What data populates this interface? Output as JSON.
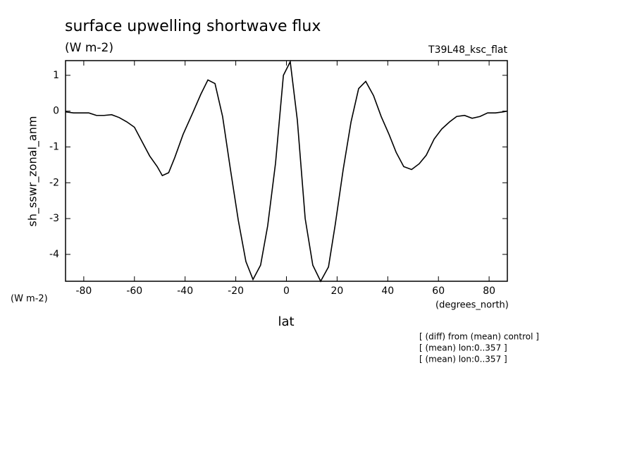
{
  "chart_data": {
    "type": "line",
    "title": "surface upwelling shortwave flux",
    "units_label": "(W m-2)",
    "dataset_label": "T39L48_ksc_flat",
    "ylabel": "sh_sswr_zonal_anm",
    "y_units": "(W m-2)",
    "x_units": "(degrees_north)",
    "xlabel": "lat",
    "notes": [
      "[ (diff) from (mean) control ]",
      "[ (mean) lon:0..357 ]",
      "[ (mean) lon:0..357 ]"
    ],
    "color": "#000000",
    "x": [
      -87.2,
      -84,
      -81,
      -78,
      -75,
      -72,
      -69,
      -66,
      -63,
      -60,
      -57,
      -54,
      -51,
      -49,
      -46.5,
      -44.1,
      -40.8,
      -37,
      -33.8,
      -31,
      -28.2,
      -25.2,
      -22.1,
      -19,
      -16,
      -13.2,
      -10.2,
      -7.4,
      -4.3,
      -1.2,
      1.5,
      4.3,
      7.4,
      10.4,
      13.5,
      16.6,
      19.3,
      22.4,
      25.5,
      28.5,
      31.3,
      34.4,
      37.4,
      40.5,
      43.3,
      46.3,
      49.4,
      52.4,
      55.2,
      58.3,
      61.3,
      64.4,
      67.2,
      70.3,
      73.3,
      76.4,
      79.4,
      82.5,
      85.6,
      87.2
    ],
    "values": [
      -0.02,
      -0.05,
      -0.05,
      -0.05,
      -0.12,
      -0.12,
      -0.1,
      -0.18,
      -0.3,
      -0.45,
      -0.85,
      -1.25,
      -1.55,
      -1.8,
      -1.72,
      -1.3,
      -0.65,
      -0.05,
      0.47,
      0.87,
      0.77,
      -0.15,
      -1.63,
      -3.05,
      -4.2,
      -4.7,
      -4.3,
      -3.2,
      -1.45,
      1.0,
      1.38,
      -0.25,
      -3.0,
      -4.3,
      -4.75,
      -4.35,
      -3.15,
      -1.63,
      -0.3,
      0.63,
      0.83,
      0.43,
      -0.15,
      -0.65,
      -1.15,
      -1.55,
      -1.63,
      -1.47,
      -1.23,
      -0.78,
      -0.5,
      -0.3,
      -0.15,
      -0.12,
      -0.2,
      -0.15,
      -0.05,
      -0.05,
      -0.02,
      0
    ],
    "xlim": [
      -87.2,
      87.2
    ],
    "ylim": [
      -4.75,
      1.41
    ],
    "xticks": [
      -80,
      -60,
      -40,
      -20,
      0,
      20,
      40,
      60,
      80
    ],
    "yticks": [
      -4,
      -3,
      -2,
      -1,
      0,
      1
    ]
  }
}
